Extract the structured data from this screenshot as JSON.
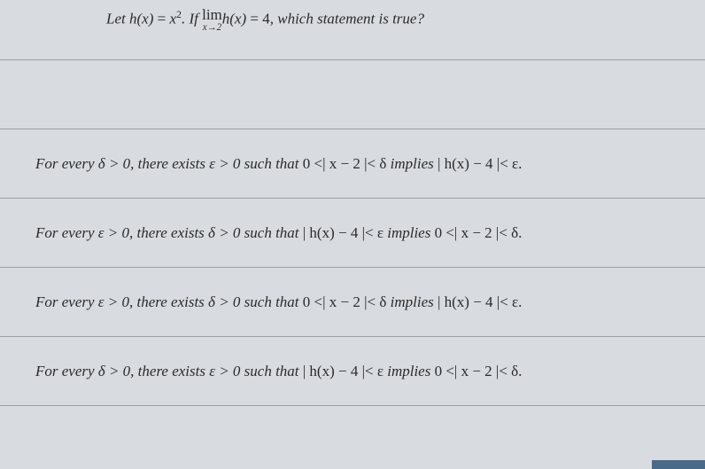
{
  "question": {
    "prefix": "Let ",
    "func_def_lhs": "h(x)",
    "func_def_eq": " = ",
    "func_def_rhs_var": "x",
    "func_def_rhs_exp": "2",
    "period": ". ",
    "if_word": "If ",
    "lim_word": "lim",
    "lim_sub": "x→2",
    "lim_arg": "h(x)",
    "lim_eq": " = 4, ",
    "tail": "which statement is true?"
  },
  "options": [
    {
      "lead": "For every δ > 0, ",
      "mid": "there exists ε > 0 such that ",
      "cond": "0 <| x − 2 |< δ ",
      "implies": "implies ",
      "res": " | h(x) − 4 |< ε."
    },
    {
      "lead": "For every ε > 0, ",
      "mid": "there exists δ > 0 such that ",
      "cond": " | h(x) − 4 |< ε ",
      "implies": " implies ",
      "res": "0 <| x − 2 |< δ."
    },
    {
      "lead": "For every ε > 0, ",
      "mid": "there exists δ > 0 such that ",
      "cond": "0 <| x − 2 |< δ ",
      "implies": "implies ",
      "res": " | h(x) − 4 |< ε."
    },
    {
      "lead": "For every  δ > 0, ",
      "mid": "there exists ε > 0 such that ",
      "cond": " | h(x) − 4 |< ε ",
      "implies": "implies ",
      "res": "0 <| x − 2 |< δ."
    }
  ],
  "colors": {
    "background": "#d8dce0",
    "text": "#2a2a2a",
    "rule": "#9aa0a6",
    "corner": "#4a6a8a"
  },
  "typography": {
    "font_family": "Georgia, Times New Roman, serif",
    "font_size_pt": 13,
    "font_style": "italic"
  }
}
